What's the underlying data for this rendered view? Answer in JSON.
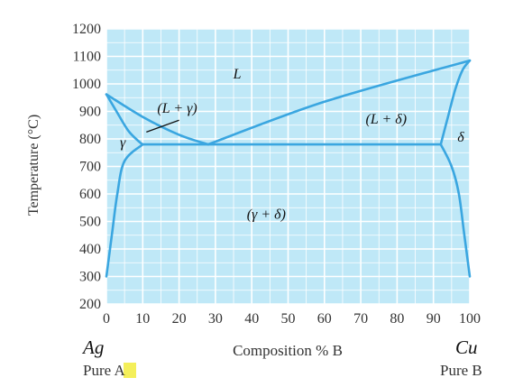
{
  "chart_data": {
    "type": "phase-diagram",
    "xlabel": "Composition % B",
    "ylabel": "Temperature (°C)",
    "xlim": [
      0,
      100
    ],
    "ylim": [
      200,
      1200
    ],
    "x_ticks": [
      0,
      10,
      20,
      30,
      40,
      50,
      60,
      70,
      80,
      90,
      100
    ],
    "y_ticks": [
      200,
      300,
      400,
      500,
      600,
      700,
      800,
      900,
      1000,
      1100,
      1200
    ],
    "grid": true,
    "background_color": "#bfe8f7",
    "grid_color": "#ffffff",
    "line_color": "#3aa6e0",
    "endpoints": {
      "left_element": "Ag",
      "left_caption_prefix": "Pure ",
      "left_caption_letter": "A",
      "left_letter_highlight": "#f4ef5a",
      "right_element": "Cu",
      "right_caption": "Pure B",
      "melting_point_left_C": 962,
      "melting_point_right_C": 1085
    },
    "eutectic": {
      "composition": 28,
      "temperature": 780
    },
    "curves": {
      "liquidus_left": [
        [
          0,
          962
        ],
        [
          10,
          880
        ],
        [
          20,
          815
        ],
        [
          28,
          780
        ]
      ],
      "liquidus_right": [
        [
          28,
          780
        ],
        [
          60,
          935
        ],
        [
          100,
          1085
        ]
      ],
      "solidus_left": [
        [
          0,
          962
        ],
        [
          3,
          895
        ],
        [
          6,
          830
        ],
        [
          9,
          790
        ],
        [
          10,
          780
        ]
      ],
      "solidus_right": [
        [
          92,
          780
        ],
        [
          94,
          880
        ],
        [
          96,
          980
        ],
        [
          98,
          1050
        ],
        [
          100,
          1085
        ]
      ],
      "eutectic_line": [
        [
          10,
          780
        ],
        [
          92,
          780
        ]
      ],
      "solvus_left": [
        [
          10,
          780
        ],
        [
          5,
          720
        ],
        [
          3,
          600
        ],
        [
          1.5,
          450
        ],
        [
          0,
          300
        ]
      ],
      "solvus_right": [
        [
          92,
          780
        ],
        [
          95,
          700
        ],
        [
          97,
          600
        ],
        [
          98.5,
          450
        ],
        [
          100,
          300
        ]
      ]
    },
    "region_labels": [
      {
        "text": "L",
        "x": 36,
        "y": 1020,
        "style": "small"
      },
      {
        "text": "(L + γ)",
        "x": 19.5,
        "y": 895,
        "style": "small"
      },
      {
        "text": "(L + δ)",
        "x": 77,
        "y": 855,
        "style": "small"
      },
      {
        "text": "γ",
        "x": 4.5,
        "y": 770,
        "style": "large"
      },
      {
        "text": "δ",
        "x": 97.5,
        "y": 790,
        "style": "large"
      },
      {
        "text": "(γ + δ)",
        "x": 44,
        "y": 510,
        "style": "medium"
      }
    ],
    "leader_line": [
      [
        11,
        825
      ],
      [
        20,
        868
      ]
    ]
  }
}
